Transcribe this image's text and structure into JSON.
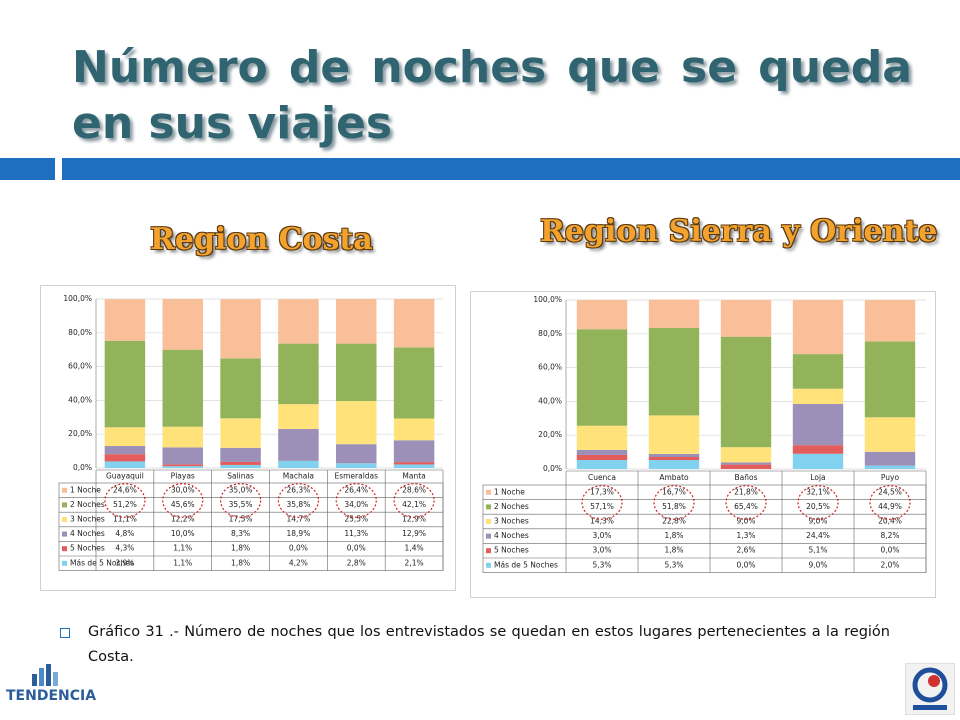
{
  "slide": {
    "title": "Número de noches que se queda en sus viajes",
    "caption": "Gráfico 31 .- Número de noches que los entrevistados se quedan en estos lugares pertenecientes a la región Costa.",
    "logo": "TENDENCIA"
  },
  "chart_data": [
    {
      "type": "stacked_bar",
      "title": "Region Costa",
      "categories": [
        "Guayaquil",
        "Playas",
        "Salinas",
        "Machala",
        "Esmeraldas",
        "Manta"
      ],
      "ylim": [
        0,
        100
      ],
      "yticks": [
        {
          "value": 0,
          "label": "0,0%"
        },
        {
          "value": 20,
          "label": "20,0%"
        },
        {
          "value": 40,
          "label": "40,0%"
        },
        {
          "value": 60,
          "label": "60,0%"
        },
        {
          "value": 80,
          "label": "80,0%"
        },
        {
          "value": 100,
          "label": "100,0%"
        }
      ],
      "series": [
        {
          "name": "1 Noche",
          "color": "#f9bf98",
          "values": [
            24.6,
            30.0,
            35.0,
            26.3,
            26.4,
            28.6
          ],
          "value_labels": [
            "24,6%",
            "30,0%",
            "35,0%",
            "26,3%",
            "26,4%",
            "28,6%"
          ]
        },
        {
          "name": "2 Noches",
          "color": "#93b35a",
          "values": [
            51.2,
            45.6,
            35.5,
            35.8,
            34.0,
            42.1
          ],
          "value_labels": [
            "51,2%",
            "45,6%",
            "35,5%",
            "35,8%",
            "34,0%",
            "42,1%"
          ]
        },
        {
          "name": "3 Noches",
          "color": "#ffe27a",
          "values": [
            11.1,
            12.2,
            17.5,
            14.7,
            25.5,
            12.9
          ],
          "value_labels": [
            "11,1%",
            "12,2%",
            "17,5%",
            "14,7%",
            "25,5%",
            "12,9%"
          ]
        },
        {
          "name": "4 Noches",
          "color": "#9d90b8",
          "values": [
            4.8,
            10.0,
            8.3,
            18.9,
            11.3,
            12.9
          ],
          "value_labels": [
            "4,8%",
            "10,0%",
            "8,3%",
            "18,9%",
            "11,3%",
            "12,9%"
          ]
        },
        {
          "name": "5 Noches",
          "color": "#e35d5d",
          "values": [
            4.3,
            1.1,
            1.8,
            0.0,
            0.0,
            1.4
          ],
          "value_labels": [
            "4,3%",
            "1,1%",
            "1,8%",
            "0,0%",
            "0,0%",
            "1,4%"
          ]
        },
        {
          "name": "Más de 5 Noches",
          "color": "#80d2ee",
          "values": [
            3.9,
            1.1,
            1.8,
            4.2,
            2.8,
            2.1
          ],
          "value_labels": [
            "3,9%",
            "1,1%",
            "1,8%",
            "4,2%",
            "2,8%",
            "2,1%"
          ]
        }
      ]
    },
    {
      "type": "stacked_bar",
      "title": "Region Sierra y Oriente",
      "categories": [
        "Cuenca",
        "Ambato",
        "Baños",
        "Loja",
        "Puyo"
      ],
      "ylim": [
        0,
        100
      ],
      "yticks": [
        {
          "value": 0,
          "label": "0,0%"
        },
        {
          "value": 20,
          "label": "20,0%"
        },
        {
          "value": 40,
          "label": "40,0%"
        },
        {
          "value": 60,
          "label": "60,0%"
        },
        {
          "value": 80,
          "label": "80,0%"
        },
        {
          "value": 100,
          "label": "100,0%"
        }
      ],
      "series": [
        {
          "name": "1 Noche",
          "color": "#f9bf98",
          "values": [
            17.3,
            16.7,
            21.8,
            32.1,
            24.5
          ],
          "value_labels": [
            "17,3%",
            "16,7%",
            "21,8%",
            "32,1%",
            "24,5%"
          ]
        },
        {
          "name": "2 Noches",
          "color": "#93b35a",
          "values": [
            57.1,
            51.8,
            65.4,
            20.5,
            44.9
          ],
          "value_labels": [
            "57,1%",
            "51,8%",
            "65,4%",
            "20,5%",
            "44,9%"
          ]
        },
        {
          "name": "3 Noches",
          "color": "#ffe27a",
          "values": [
            14.3,
            22.8,
            9.0,
            9.0,
            20.4
          ],
          "value_labels": [
            "14,3%",
            "22,8%",
            "9,0%",
            "9,0%",
            "20,4%"
          ]
        },
        {
          "name": "4 Noches",
          "color": "#9d90b8",
          "values": [
            3.0,
            1.8,
            1.3,
            24.4,
            8.2
          ],
          "value_labels": [
            "3,0%",
            "1,8%",
            "1,3%",
            "24,4%",
            "8,2%"
          ]
        },
        {
          "name": "5 Noches",
          "color": "#e35d5d",
          "values": [
            3.0,
            1.8,
            2.6,
            5.1,
            0.0
          ],
          "value_labels": [
            "3,0%",
            "1,8%",
            "2,6%",
            "5,1%",
            "0,0%"
          ]
        },
        {
          "name": "Más de 5 Noches",
          "color": "#80d2ee",
          "values": [
            5.3,
            5.3,
            0.0,
            9.0,
            2.0
          ],
          "value_labels": [
            "5,3%",
            "5,3%",
            "0,0%",
            "9,0%",
            "2,0%"
          ]
        }
      ]
    }
  ]
}
